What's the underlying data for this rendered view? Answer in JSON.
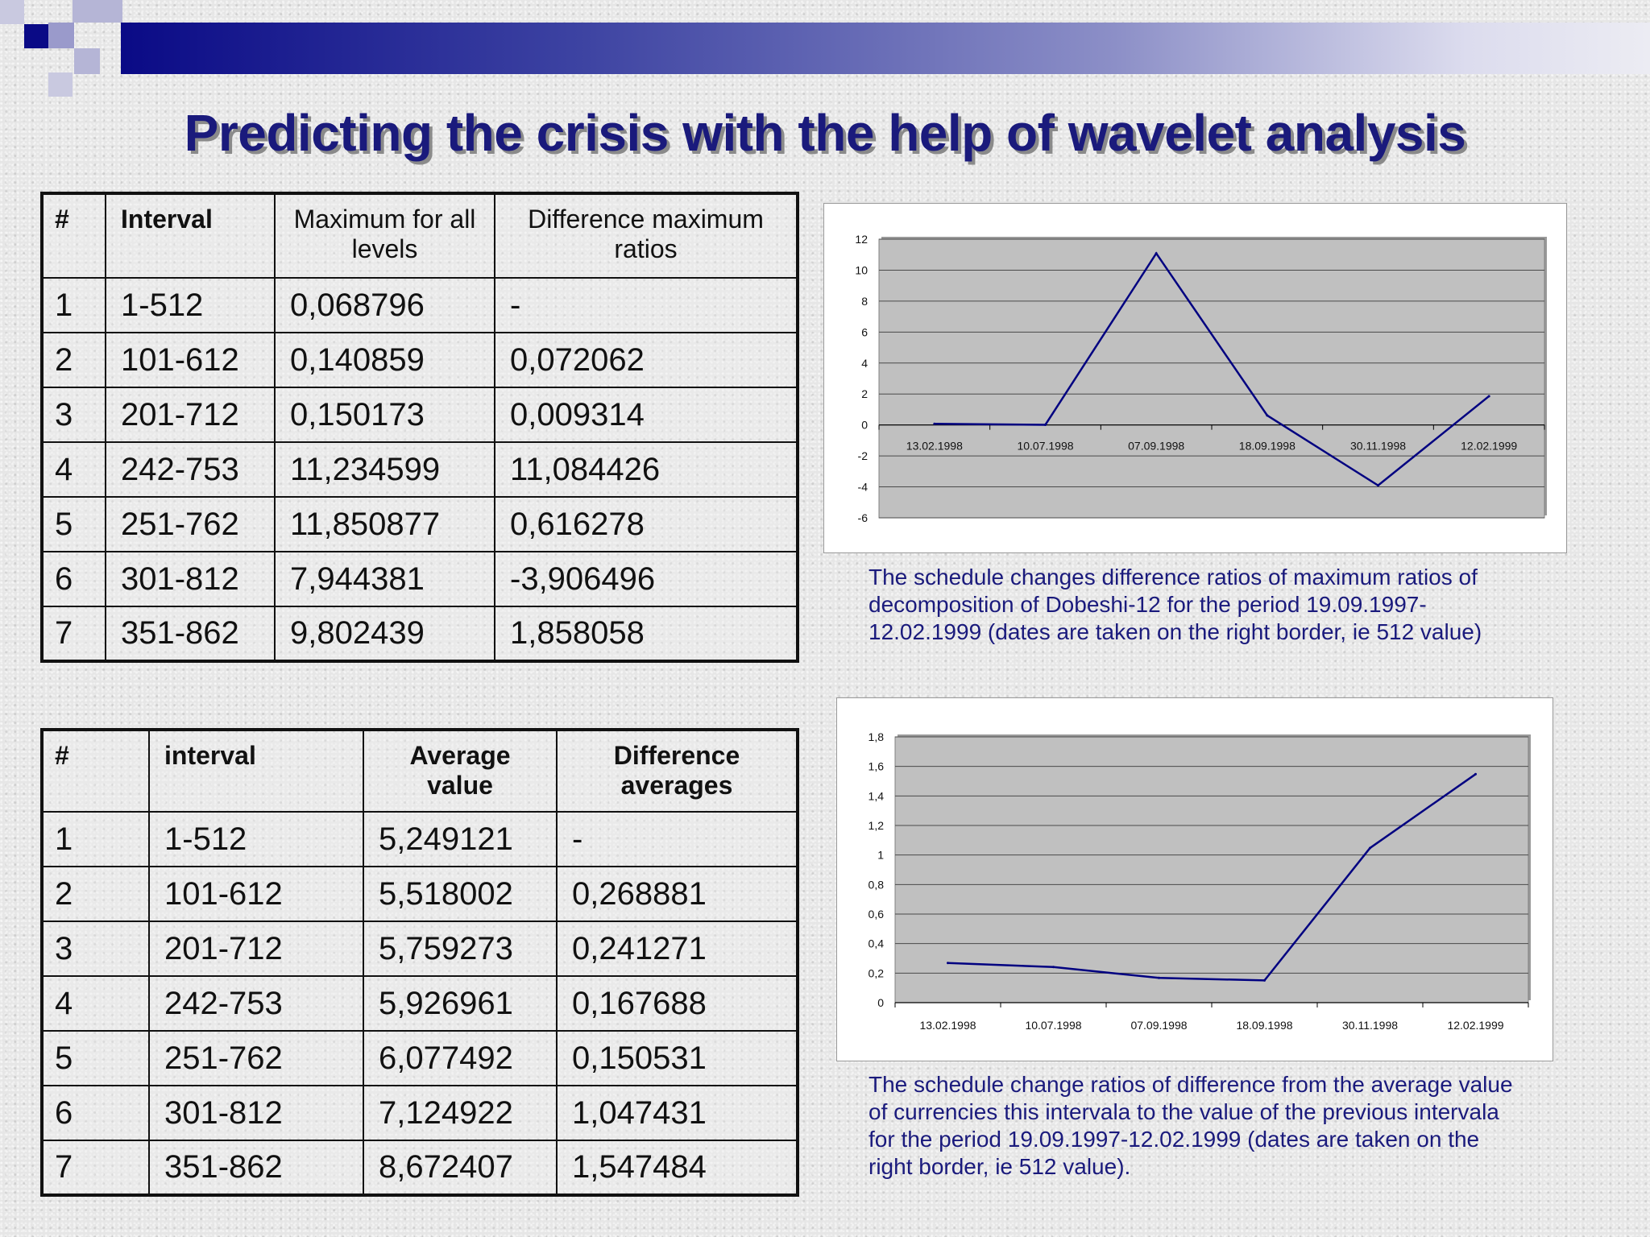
{
  "title": "Predicting the crisis with the help of wavelet analysis",
  "table1": {
    "headers": [
      "#",
      "Interval",
      "Maximum for all levels",
      "Difference maximum ratios"
    ],
    "rows": [
      [
        "1",
        "1-512",
        "0,068796",
        "-"
      ],
      [
        "2",
        "101-612",
        "0,140859",
        "0,072062"
      ],
      [
        "3",
        "201-712",
        "0,150173",
        "0,009314"
      ],
      [
        "4",
        "242-753",
        "11,234599",
        "11,084426"
      ],
      [
        "5",
        "251-762",
        "11,850877",
        "0,616278"
      ],
      [
        "6",
        "301-812",
        "7,944381",
        "-3,906496"
      ],
      [
        "7",
        "351-862",
        "9,802439",
        "1,858058"
      ]
    ]
  },
  "table2": {
    "headers": [
      "#",
      "interval",
      "Average value",
      "Difference averages"
    ],
    "rows": [
      [
        "1",
        "1-512",
        "5,249121",
        "-"
      ],
      [
        "2",
        "101-612",
        "5,518002",
        "0,268881"
      ],
      [
        "3",
        "201-712",
        "5,759273",
        "0,241271"
      ],
      [
        "4",
        "242-753",
        "5,926961",
        "0,167688"
      ],
      [
        "5",
        "251-762",
        "6,077492",
        "0,150531"
      ],
      [
        "6",
        "301-812",
        "7,124922",
        "1,047431"
      ],
      [
        "7",
        "351-862",
        "8,672407",
        "1,547484"
      ]
    ]
  },
  "captions": {
    "chart1": "The schedule changes difference ratios of maximum ratios of decomposition of Dobeshi-12 for the period 19.09.1997-12.02.1999 (dates are taken on the right border, ie 512 value)",
    "chart2": "The schedule change ratios of difference from the average value of currencies this intervala to the value of the previous intervala for the period 19.09.1997-12.02.1999 (dates are taken on the right border, ie 512 value)."
  },
  "chart_data": [
    {
      "type": "line",
      "categories": [
        "13.02.1998",
        "10.07.1998",
        "07.09.1998",
        "18.09.1998",
        "30.11.1998",
        "12.02.1999"
      ],
      "series": [
        {
          "values": [
            0.072062,
            0.009314,
            11.084426,
            0.616278,
            -3.906496,
            1.858058
          ]
        }
      ],
      "ylim": [
        -6,
        12
      ],
      "yticks": [
        -6,
        -4,
        -2,
        0,
        2,
        4,
        6,
        8,
        10,
        12
      ],
      "ytick_labels": [
        "-6",
        "-4",
        "-2",
        "0",
        "2",
        "4",
        "6",
        "8",
        "10",
        "12"
      ],
      "grid": true,
      "plot_bg": "#c0c0c0",
      "line_color": "#000080"
    },
    {
      "type": "line",
      "categories": [
        "13.02.1998",
        "10.07.1998",
        "07.09.1998",
        "18.09.1998",
        "30.11.1998",
        "12.02.1999"
      ],
      "series": [
        {
          "values": [
            0.268881,
            0.241271,
            0.167688,
            0.150531,
            1.047431,
            1.547484
          ]
        }
      ],
      "ylim": [
        0,
        1.8
      ],
      "yticks": [
        0,
        0.2,
        0.4,
        0.6,
        0.8,
        1,
        1.2,
        1.4,
        1.6,
        1.8
      ],
      "ytick_labels": [
        "0",
        "0,2",
        "0,4",
        "0,6",
        "0,8",
        "1",
        "1,2",
        "1,4",
        "1,6",
        "1,8"
      ],
      "grid": true,
      "plot_bg": "#c0c0c0",
      "line_color": "#000080"
    }
  ],
  "colors": {
    "title": "#1a1a7c",
    "caption": "#1a1a7c",
    "topbar_start": "#0a0a86",
    "topbar_end": "#ececf3"
  }
}
